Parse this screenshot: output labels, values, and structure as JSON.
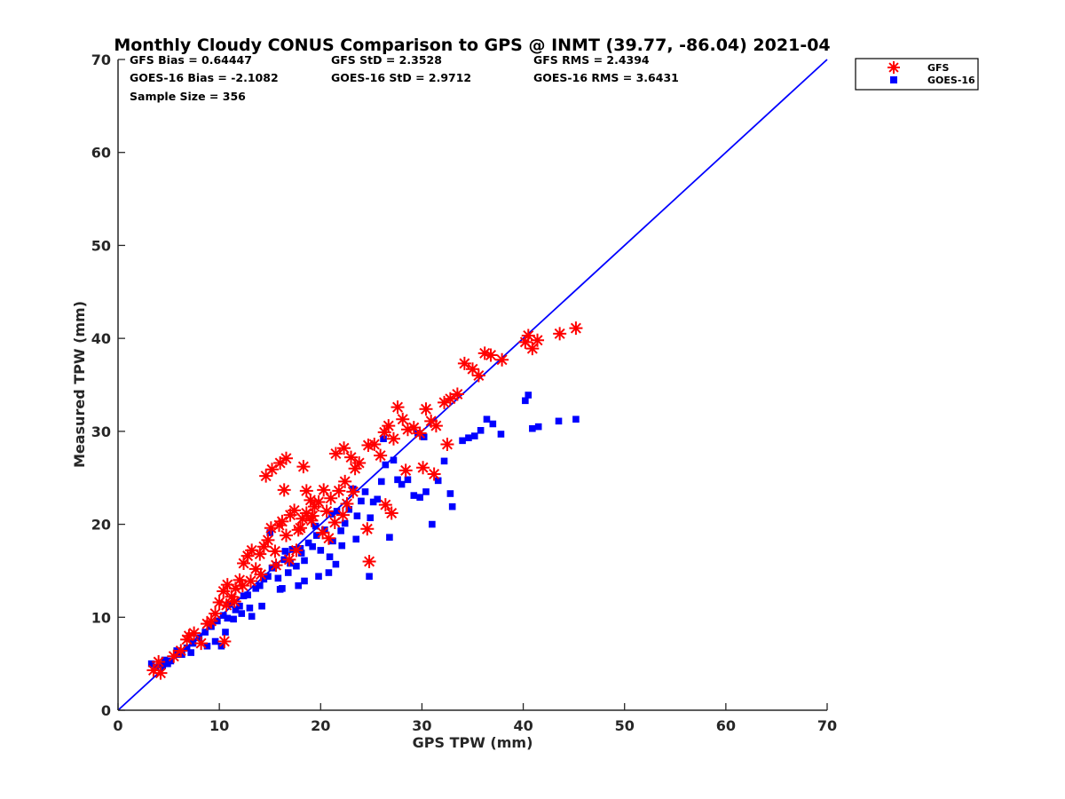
{
  "chart_data": {
    "type": "scatter",
    "title": "Monthly Cloudy CONUS Comparison to GPS @ INMT (39.77, -86.04) 2021-04",
    "xlabel": "GPS TPW (mm)",
    "ylabel": "Measured TPW (mm)",
    "xlim": [
      0,
      70
    ],
    "ylim": [
      0,
      70
    ],
    "xticks": [
      "0",
      "10",
      "20",
      "30",
      "40",
      "50",
      "60",
      "70"
    ],
    "yticks": [
      "0",
      "10",
      "20",
      "30",
      "40",
      "50",
      "60",
      "70"
    ],
    "stats": [
      [
        "GFS Bias = 0.64447",
        "GFS StD = 2.3528",
        "GFS RMS = 2.4394"
      ],
      [
        "GOES-16 Bias = -2.1082",
        "GOES-16 StD = 2.9712",
        "GOES-16 RMS = 3.6431"
      ],
      [
        "Sample Size = 356"
      ]
    ],
    "legend": {
      "position": "outside top-right",
      "entries": [
        "GFS",
        "GOES-16"
      ]
    },
    "colors": {
      "gfs": "#ff0000",
      "goes": "#0000ff",
      "line": "#0000ff",
      "axis": "#262626"
    },
    "reference_line": {
      "x": [
        0,
        70
      ],
      "y": [
        0,
        70
      ]
    },
    "series": [
      {
        "name": "GFS",
        "marker": "asterisk",
        "points": [
          [
            3.5,
            4.3
          ],
          [
            4.2,
            4.0
          ],
          [
            4.0,
            5.2
          ],
          [
            5.5,
            5.8
          ],
          [
            6.2,
            6.4
          ],
          [
            6.8,
            7.6
          ],
          [
            7.0,
            8.0
          ],
          [
            7.5,
            8.3
          ],
          [
            8.2,
            7.2
          ],
          [
            8.8,
            9.3
          ],
          [
            9.2,
            9.6
          ],
          [
            9.6,
            10.4
          ],
          [
            10.0,
            11.6
          ],
          [
            10.4,
            12.8
          ],
          [
            10.5,
            7.4
          ],
          [
            10.8,
            13.5
          ],
          [
            11.2,
            12.2
          ],
          [
            11.6,
            13.1
          ],
          [
            12.0,
            14.0
          ],
          [
            12.4,
            15.8
          ],
          [
            12.8,
            16.6
          ],
          [
            13.2,
            17.2
          ],
          [
            13.6,
            15.2
          ],
          [
            14.0,
            16.8
          ],
          [
            14.4,
            17.6
          ],
          [
            14.8,
            18.3
          ],
          [
            15.1,
            19.6
          ],
          [
            15.5,
            17.1
          ],
          [
            15.9,
            19.9
          ],
          [
            16.2,
            20.3
          ],
          [
            16.6,
            18.8
          ],
          [
            17.0,
            21.0
          ],
          [
            17.4,
            21.5
          ],
          [
            17.8,
            19.4
          ],
          [
            18.2,
            20.6
          ],
          [
            18.6,
            21.2
          ],
          [
            19.0,
            22.6
          ],
          [
            19.4,
            21.9
          ],
          [
            19.8,
            22.4
          ],
          [
            20.2,
            19.1
          ],
          [
            20.6,
            21.4
          ],
          [
            21.0,
            22.8
          ],
          [
            21.4,
            20.2
          ],
          [
            21.8,
            23.6
          ],
          [
            22.2,
            21.0
          ],
          [
            22.6,
            22.2
          ],
          [
            14.6,
            25.2
          ],
          [
            15.2,
            25.9
          ],
          [
            16.0,
            26.6
          ],
          [
            16.6,
            27.1
          ],
          [
            16.4,
            23.7
          ],
          [
            18.6,
            23.6
          ],
          [
            18.3,
            26.2
          ],
          [
            21.5,
            27.6
          ],
          [
            22.3,
            28.2
          ],
          [
            23.0,
            27.2
          ],
          [
            23.4,
            26.0
          ],
          [
            23.8,
            26.6
          ],
          [
            24.7,
            28.5
          ],
          [
            25.3,
            28.6
          ],
          [
            25.9,
            27.4
          ],
          [
            26.3,
            29.9
          ],
          [
            26.7,
            30.6
          ],
          [
            27.2,
            29.2
          ],
          [
            27.6,
            32.6
          ],
          [
            28.1,
            31.3
          ],
          [
            28.6,
            30.2
          ],
          [
            29.2,
            30.4
          ],
          [
            29.8,
            29.8
          ],
          [
            30.4,
            32.4
          ],
          [
            30.9,
            31.1
          ],
          [
            31.4,
            30.6
          ],
          [
            32.2,
            33.1
          ],
          [
            32.8,
            33.5
          ],
          [
            33.5,
            34.0
          ],
          [
            34.2,
            37.3
          ],
          [
            35.0,
            36.7
          ],
          [
            35.6,
            36.0
          ],
          [
            36.2,
            38.4
          ],
          [
            36.8,
            38.2
          ],
          [
            37.9,
            37.7
          ],
          [
            40.2,
            39.6
          ],
          [
            40.5,
            40.3
          ],
          [
            40.9,
            38.9
          ],
          [
            41.4,
            39.8
          ],
          [
            43.6,
            40.5
          ],
          [
            45.2,
            41.1
          ],
          [
            24.8,
            16.0
          ],
          [
            24.6,
            19.5
          ],
          [
            27.0,
            21.2
          ],
          [
            30.1,
            26.1
          ],
          [
            31.2,
            25.4
          ],
          [
            32.5,
            28.6
          ],
          [
            26.4,
            22.1
          ],
          [
            28.4,
            25.8
          ],
          [
            19.1,
            20.4
          ],
          [
            20.8,
            18.5
          ],
          [
            17.6,
            17.2
          ],
          [
            16.9,
            16.2
          ],
          [
            15.6,
            15.6
          ],
          [
            14.1,
            14.6
          ],
          [
            13.1,
            13.9
          ],
          [
            12.3,
            13.4
          ],
          [
            11.5,
            11.7
          ],
          [
            10.7,
            11.3
          ],
          [
            23.2,
            23.5
          ],
          [
            22.4,
            24.6
          ],
          [
            20.3,
            23.7
          ],
          [
            19.2,
            20.9
          ],
          [
            18.0,
            19.6
          ]
        ]
      },
      {
        "name": "GOES-16",
        "marker": "square",
        "points": [
          [
            3.3,
            5.0
          ],
          [
            3.7,
            4.6
          ],
          [
            4.4,
            4.8
          ],
          [
            4.9,
            5.0
          ],
          [
            5.8,
            6.4
          ],
          [
            6.3,
            6.0
          ],
          [
            6.8,
            6.7
          ],
          [
            7.4,
            7.2
          ],
          [
            8.0,
            7.8
          ],
          [
            8.6,
            8.4
          ],
          [
            9.2,
            9.0
          ],
          [
            9.8,
            9.6
          ],
          [
            10.2,
            6.9
          ],
          [
            10.4,
            10.2
          ],
          [
            10.8,
            9.9
          ],
          [
            11.0,
            11.4
          ],
          [
            11.6,
            10.8
          ],
          [
            12.0,
            11.2
          ],
          [
            12.4,
            12.3
          ],
          [
            12.8,
            12.4
          ],
          [
            13.2,
            10.1
          ],
          [
            13.6,
            13.1
          ],
          [
            14.0,
            13.4
          ],
          [
            14.4,
            14.1
          ],
          [
            14.8,
            14.4
          ],
          [
            15.2,
            15.3
          ],
          [
            15.6,
            15.6
          ],
          [
            16.0,
            13.0
          ],
          [
            16.4,
            16.2
          ],
          [
            16.8,
            14.8
          ],
          [
            17.2,
            17.3
          ],
          [
            17.6,
            15.5
          ],
          [
            18.0,
            17.4
          ],
          [
            18.4,
            16.1
          ],
          [
            18.8,
            18.0
          ],
          [
            19.2,
            17.6
          ],
          [
            19.6,
            18.8
          ],
          [
            20.0,
            17.2
          ],
          [
            20.4,
            19.4
          ],
          [
            20.8,
            14.8
          ],
          [
            21.2,
            18.2
          ],
          [
            21.6,
            21.4
          ],
          [
            22.0,
            19.3
          ],
          [
            22.4,
            20.1
          ],
          [
            22.8,
            21.6
          ],
          [
            23.2,
            23.8
          ],
          [
            23.6,
            20.9
          ],
          [
            24.0,
            22.5
          ],
          [
            24.4,
            23.5
          ],
          [
            24.8,
            14.4
          ],
          [
            25.2,
            22.4
          ],
          [
            25.6,
            22.7
          ],
          [
            26.0,
            24.6
          ],
          [
            26.4,
            26.4
          ],
          [
            26.8,
            18.6
          ],
          [
            27.2,
            26.9
          ],
          [
            27.6,
            24.8
          ],
          [
            28.0,
            24.3
          ],
          [
            28.6,
            24.8
          ],
          [
            29.2,
            23.1
          ],
          [
            29.8,
            22.9
          ],
          [
            30.4,
            23.5
          ],
          [
            31.0,
            20.0
          ],
          [
            31.6,
            24.7
          ],
          [
            32.2,
            26.8
          ],
          [
            32.8,
            23.3
          ],
          [
            33.0,
            21.9
          ],
          [
            34.0,
            29.0
          ],
          [
            34.6,
            29.3
          ],
          [
            35.2,
            29.5
          ],
          [
            35.8,
            30.1
          ],
          [
            36.4,
            31.3
          ],
          [
            37.0,
            30.8
          ],
          [
            37.8,
            29.7
          ],
          [
            40.2,
            33.3
          ],
          [
            40.5,
            33.9
          ],
          [
            40.9,
            30.3
          ],
          [
            41.5,
            30.5
          ],
          [
            43.5,
            31.1
          ],
          [
            45.2,
            31.3
          ],
          [
            29.6,
            29.8
          ],
          [
            30.2,
            29.4
          ],
          [
            26.2,
            29.2
          ],
          [
            24.9,
            20.7
          ],
          [
            21.5,
            15.7
          ],
          [
            19.8,
            14.4
          ],
          [
            18.4,
            13.9
          ],
          [
            17.8,
            13.4
          ],
          [
            16.2,
            13.1
          ],
          [
            14.2,
            11.2
          ],
          [
            13.0,
            11.0
          ],
          [
            12.2,
            10.4
          ],
          [
            11.4,
            9.8
          ],
          [
            10.6,
            8.4
          ],
          [
            9.6,
            7.4
          ],
          [
            8.8,
            6.9
          ],
          [
            7.2,
            6.2
          ],
          [
            6.0,
            6.0
          ],
          [
            5.2,
            5.3
          ],
          [
            4.6,
            5.4
          ],
          [
            15.0,
            19.1
          ],
          [
            16.5,
            17.1
          ],
          [
            18.1,
            16.9
          ],
          [
            19.5,
            19.8
          ],
          [
            20.9,
            16.5
          ],
          [
            22.1,
            17.7
          ],
          [
            23.5,
            18.4
          ],
          [
            21.1,
            21.1
          ],
          [
            17.0,
            15.8
          ],
          [
            15.8,
            14.2
          ]
        ]
      }
    ]
  }
}
